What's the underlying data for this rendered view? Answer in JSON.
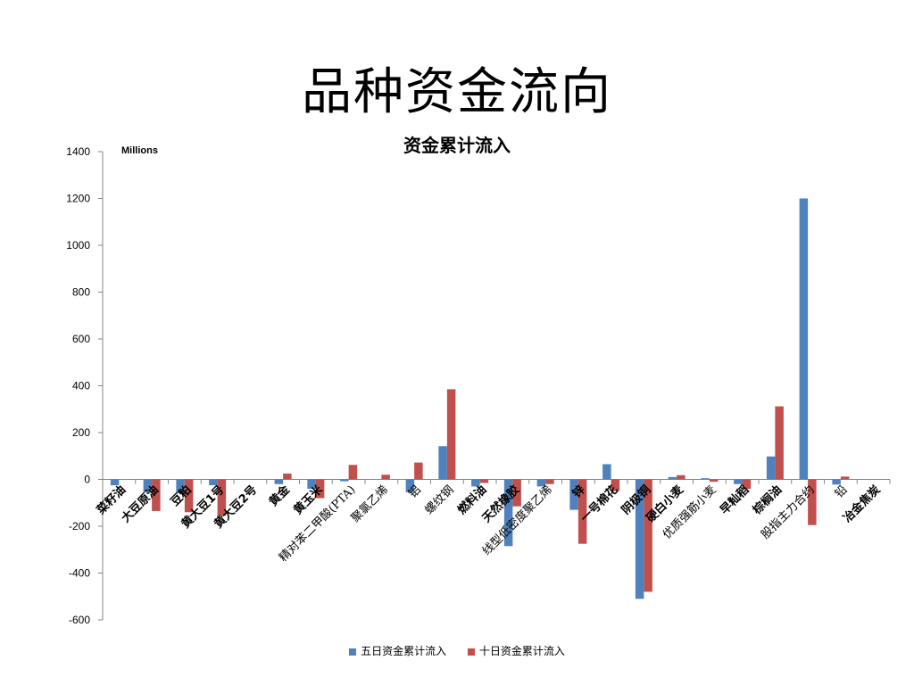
{
  "slide": {
    "title": "品种资金流向"
  },
  "chart_data": {
    "type": "bar",
    "title": "资金累计流入",
    "unit_label": "Millions",
    "xlabel": "",
    "ylabel": "",
    "ylim": [
      -600,
      1400
    ],
    "yticks": [
      1400,
      1200,
      1000,
      800,
      600,
      400,
      200,
      0,
      -200,
      -400,
      -600
    ],
    "grid": false,
    "legend_position": "bottom",
    "categories": [
      "菜籽油",
      "大豆原油",
      "豆粕",
      "黄大豆1号",
      "黄大豆2号",
      "黄金",
      "黄玉米",
      "精对苯二甲酸(PTA)",
      "聚氯乙烯",
      "铝",
      "螺纹钢",
      "燃料油",
      "天然橡胶",
      "线型低密度聚乙烯",
      "锌",
      "一号棉花",
      "阴极铜",
      "硬白小麦",
      "优质强筋小麦",
      "早籼稻",
      "棕榈油",
      "股指主力合约",
      "铅",
      "冶金焦炭"
    ],
    "series": [
      {
        "name": "五日资金累计流入",
        "color": "#4f81bd",
        "values": [
          -25,
          -55,
          -60,
          -25,
          0,
          -20,
          -40,
          -8,
          0,
          -55,
          142,
          -30,
          -285,
          -30,
          -130,
          65,
          -510,
          10,
          5,
          -20,
          98,
          1200,
          -22,
          0
        ]
      },
      {
        "name": "十日资金累计流入",
        "color": "#c0504d",
        "values": [
          0,
          -135,
          -140,
          -155,
          0,
          25,
          -80,
          62,
          20,
          72,
          385,
          -15,
          -115,
          -20,
          -275,
          -50,
          -480,
          18,
          -10,
          -40,
          312,
          -195,
          12,
          0
        ]
      }
    ]
  }
}
